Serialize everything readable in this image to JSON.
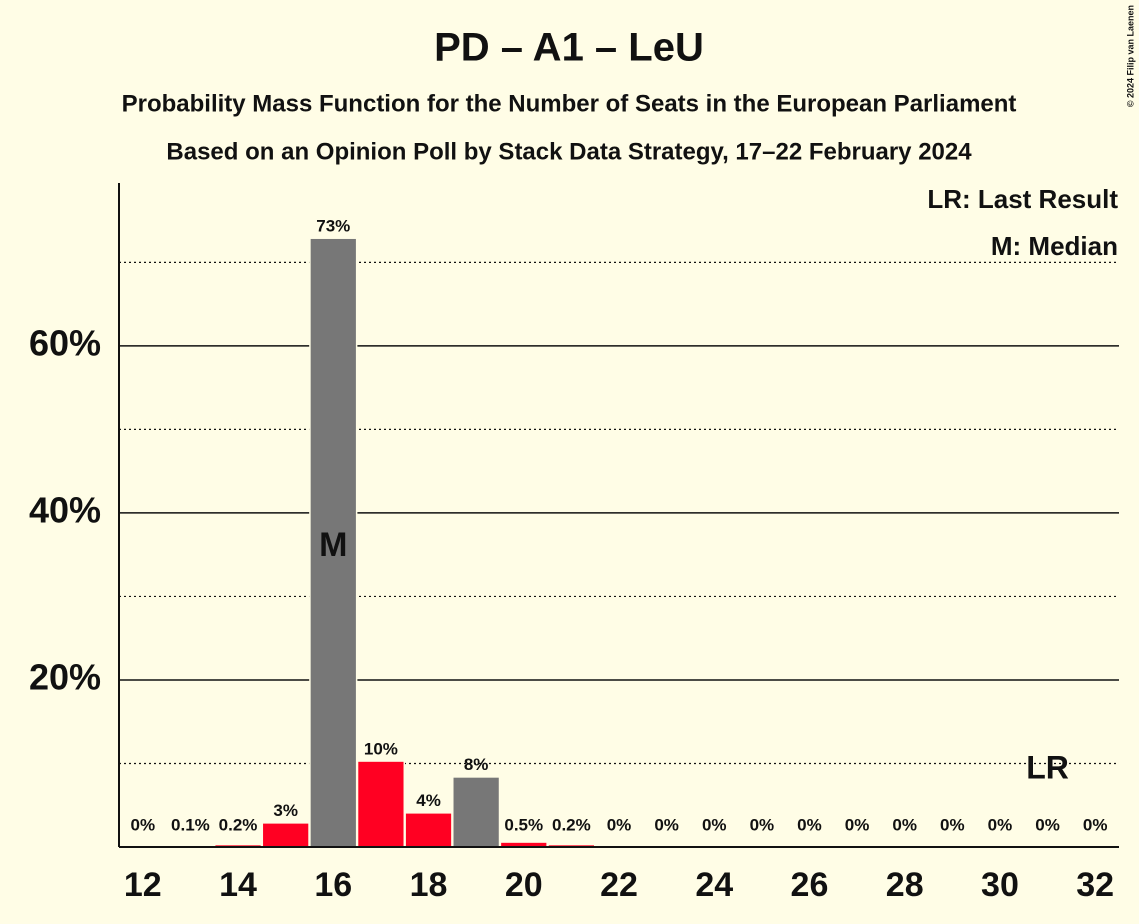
{
  "chart_data": {
    "type": "bar",
    "title": "PD – A1 – LeU",
    "subtitle": "Probability Mass Function for the Number of Seats in the European Parliament",
    "subtitle2": "Based on an Opinion Poll by Stack Data Strategy, 17–22 February 2024",
    "copyright": "© 2024 Filip van Laenen",
    "x": [
      12,
      13,
      14,
      15,
      16,
      17,
      18,
      19,
      20,
      21,
      22,
      23,
      24,
      25,
      26,
      27,
      28,
      29,
      30,
      31,
      32
    ],
    "values": [
      0,
      0.1,
      0.2,
      2.8,
      72.8,
      10.2,
      4.0,
      8.3,
      0.5,
      0.2,
      0,
      0,
      0,
      0,
      0,
      0,
      0,
      0,
      0,
      0,
      0
    ],
    "value_labels": [
      "0%",
      "0.1%",
      "0.2%",
      "3%",
      "73%",
      "10%",
      "4%",
      "8%",
      "0.5%",
      "0.2%",
      "0%",
      "0%",
      "0%",
      "0%",
      "0%",
      "0%",
      "0%",
      "0%",
      "0%",
      "0%",
      "0%"
    ],
    "colors": [
      "#ff0022",
      "#ff0022",
      "#ff0022",
      "#ff0022",
      "#777777",
      "#ff0022",
      "#ff0022",
      "#777777",
      "#ff0022",
      "#ff0022",
      "#ff0022",
      "#ff0022",
      "#ff0022",
      "#ff0022",
      "#ff0022",
      "#ff0022",
      "#ff0022",
      "#ff0022",
      "#ff0022",
      "#ff0022",
      "#ff0022"
    ],
    "xlim": [
      11.5,
      32.5
    ],
    "xticks": [
      12,
      14,
      16,
      18,
      20,
      22,
      24,
      26,
      28,
      30,
      32
    ],
    "ylim": [
      0,
      79.5
    ],
    "yticks": [
      {
        "value": 20,
        "label": "20%"
      },
      {
        "value": 40,
        "label": "40%"
      },
      {
        "value": 60,
        "label": "60%"
      }
    ],
    "minor_yticks": [
      10,
      30,
      50,
      70
    ],
    "grid": true,
    "median": {
      "x": 16,
      "label": "M"
    },
    "last_result": {
      "x": 31,
      "label": "LR"
    },
    "legend": [
      "LR: Last Result",
      "M: Median"
    ]
  }
}
